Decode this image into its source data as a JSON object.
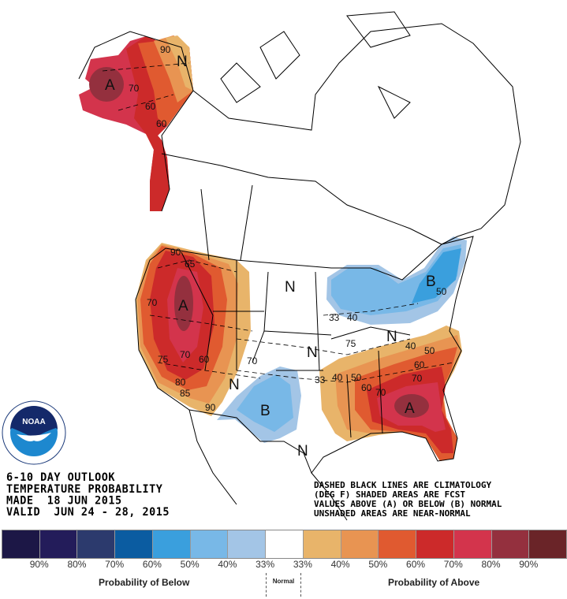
{
  "header": {
    "line1": "6-10 DAY OUTLOOK",
    "line2": "TEMPERATURE PROBABILITY",
    "line3": "MADE  18 JUN 2015",
    "line4": "VALID  JUN 24 - 28, 2015"
  },
  "notes": {
    "line1": "DASHED BLACK LINES ARE CLIMATOLOGY",
    "line2": "(DEG F) SHADED AREAS ARE FCST",
    "line3": "VALUES ABOVE (A) OR BELOW (B) NORMAL",
    "line4": "UNSHADED AREAS ARE NEAR-NORMAL"
  },
  "logo": {
    "text": "NOAA",
    "ring_text": "NATIONAL OCEANIC AND ATMOSPHERIC ADMINISTRATION · U.S. DEPARTMENT OF COMMERCE"
  },
  "map_labels": {
    "above": "A",
    "below": "B",
    "near_normal": "N",
    "contours": [
      "90",
      "70",
      "60",
      "60",
      "90",
      "65",
      "70",
      "75",
      "70",
      "60",
      "80",
      "85",
      "90",
      "70",
      "33",
      "40",
      "75",
      "33",
      "40",
      "50",
      "40",
      "50",
      "60",
      "70",
      "60",
      "70",
      "50"
    ]
  },
  "legend": {
    "colors": [
      "#1c1746",
      "#231c5a",
      "#2c3a6d",
      "#0b5ca1",
      "#3a9fdd",
      "#78b8e7",
      "#a3c5e6",
      "#ffffff",
      "#e8b46a",
      "#e89452",
      "#e05a30",
      "#cc2a2a",
      "#d3344c",
      "#94303e",
      "#6a2428"
    ],
    "ticks": [
      "90%",
      "80%",
      "70%",
      "60%",
      "50%",
      "40%",
      "33%",
      "33%",
      "40%",
      "50%",
      "60%",
      "70%",
      "80%",
      "90%"
    ],
    "below_label": "Probability of Below",
    "normal_label": "Normal",
    "above_label": "Probability of Above"
  }
}
